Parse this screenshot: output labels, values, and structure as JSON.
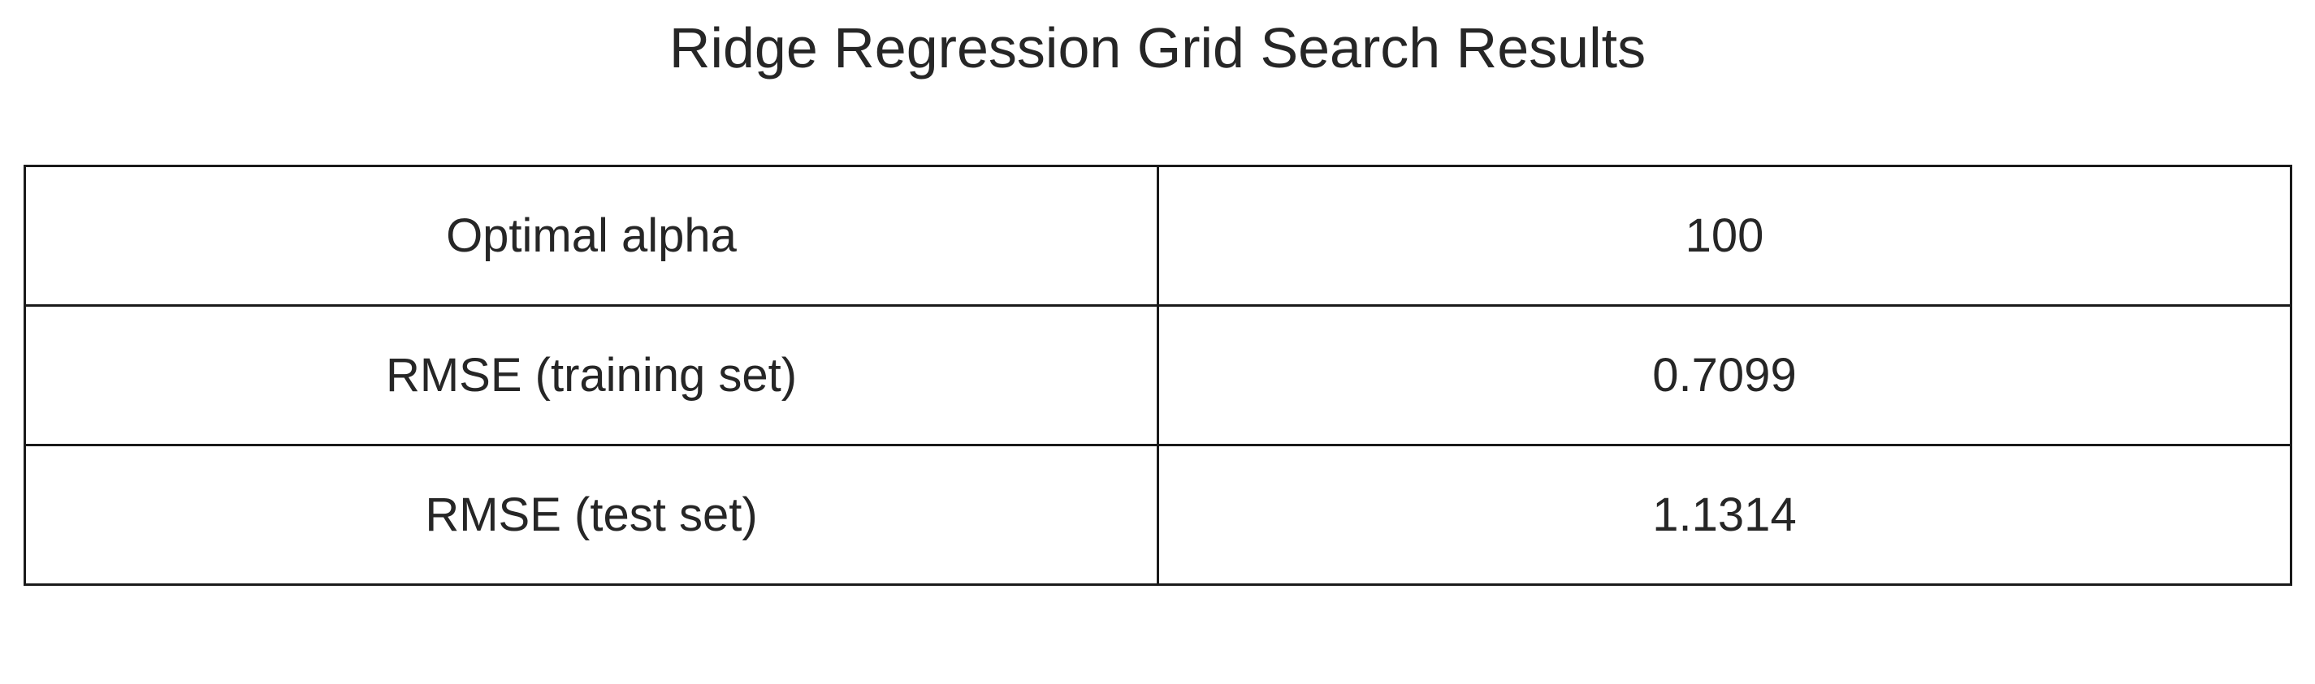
{
  "chart_data": {
    "type": "table",
    "title": "Ridge Regression Grid Search Results",
    "rows": [
      {
        "label": "Optimal alpha",
        "value": "100"
      },
      {
        "label": "RMSE (training set)",
        "value": "0.7099"
      },
      {
        "label": "RMSE (test set)",
        "value": "1.1314"
      }
    ]
  }
}
